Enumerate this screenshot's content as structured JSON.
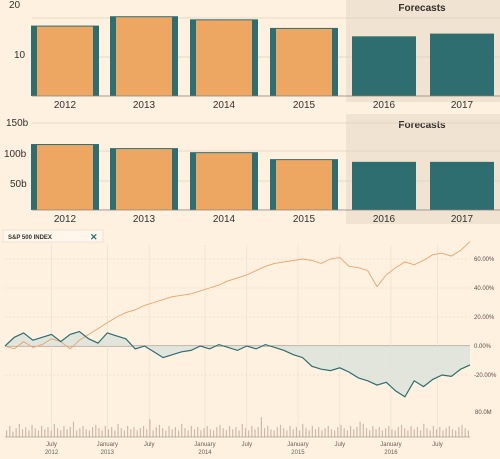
{
  "colors": {
    "background": "#fff1e0",
    "forecast_band": "#f0e3d2",
    "bar_orange": "#eda763",
    "bar_teal": "#2e6e70",
    "line_orange": "#e6a36a",
    "line_teal": "#2e6e70",
    "area_fill": "#dfe3dc",
    "volume": "#cdb9a8",
    "legend_close": "#2e6e70"
  },
  "chart_data": [
    {
      "type": "bar",
      "categories": [
        "2012",
        "2013",
        "2014",
        "2015",
        "2016",
        "2017"
      ],
      "values": [
        17.8,
        20.2,
        19.4,
        17.2,
        15.3,
        16.0
      ],
      "forecast_from_index": 4,
      "forecast_label": "Forecasts",
      "yticks": [
        10,
        20
      ],
      "ylim": [
        0,
        20.6
      ]
    },
    {
      "type": "bar",
      "categories": [
        "2012",
        "2013",
        "2014",
        "2015",
        "2016",
        "2017"
      ],
      "values": [
        112,
        105,
        98,
        86,
        83,
        83
      ],
      "forecast_from_index": 4,
      "forecast_label": "Forecasts",
      "yticks": [
        50,
        100,
        150
      ],
      "ytick_labels": [
        "50b",
        "100b",
        "150b"
      ],
      "ylim": [
        0,
        150
      ]
    },
    {
      "type": "line",
      "legend": "S&P 500 INDEX",
      "xticks": [
        {
          "month": "July",
          "year": "2012",
          "t": 0.1
        },
        {
          "month": "January",
          "year": "2013",
          "t": 0.22
        },
        {
          "month": "July",
          "year": "",
          "t": 0.31
        },
        {
          "month": "January",
          "year": "2014",
          "t": 0.43
        },
        {
          "month": "July",
          "year": "",
          "t": 0.52
        },
        {
          "month": "January",
          "year": "2015",
          "t": 0.63
        },
        {
          "month": "July",
          "year": "",
          "t": 0.72
        },
        {
          "month": "January",
          "year": "2016",
          "t": 0.83
        },
        {
          "month": "July",
          "year": "",
          "t": 0.93
        }
      ],
      "yticks": [
        {
          "label": "60.00%",
          "value": 60
        },
        {
          "label": "40.00%",
          "value": 40
        },
        {
          "label": "20.00%",
          "value": 20
        },
        {
          "label": "0.00%",
          "value": 0
        },
        {
          "label": "-20.00%",
          "value": -20
        }
      ],
      "ylim": [
        -37,
        75
      ],
      "volume_label": "80.0M",
      "series": [
        {
          "name": "S&P 500 INDEX",
          "x": [
            0,
            0.02,
            0.04,
            0.06,
            0.08,
            0.1,
            0.12,
            0.14,
            0.16,
            0.18,
            0.2,
            0.22,
            0.24,
            0.26,
            0.28,
            0.3,
            0.32,
            0.34,
            0.36,
            0.38,
            0.4,
            0.42,
            0.44,
            0.46,
            0.48,
            0.5,
            0.52,
            0.54,
            0.56,
            0.58,
            0.6,
            0.62,
            0.64,
            0.66,
            0.68,
            0.7,
            0.72,
            0.74,
            0.76,
            0.78,
            0.8,
            0.82,
            0.84,
            0.86,
            0.88,
            0.9,
            0.92,
            0.94,
            0.96,
            0.98,
            1.0
          ],
          "y": [
            0,
            -2,
            3,
            -1,
            1,
            5,
            3,
            -2,
            4,
            8,
            12,
            16,
            20,
            23,
            25,
            28,
            30,
            32,
            34,
            35,
            36,
            38,
            40,
            42,
            45,
            47,
            49,
            52,
            55,
            57,
            58,
            59,
            60,
            59,
            57,
            60,
            61,
            55,
            54,
            52,
            41,
            49,
            54,
            58,
            56,
            59,
            63,
            64,
            62,
            66,
            72
          ]
        },
        {
          "name": "",
          "x": [
            0,
            0.02,
            0.04,
            0.06,
            0.08,
            0.1,
            0.12,
            0.14,
            0.16,
            0.18,
            0.2,
            0.22,
            0.24,
            0.26,
            0.28,
            0.3,
            0.32,
            0.34,
            0.36,
            0.38,
            0.4,
            0.42,
            0.44,
            0.46,
            0.48,
            0.5,
            0.52,
            0.54,
            0.56,
            0.58,
            0.6,
            0.62,
            0.64,
            0.66,
            0.68,
            0.7,
            0.72,
            0.74,
            0.76,
            0.78,
            0.8,
            0.82,
            0.84,
            0.86,
            0.88,
            0.9,
            0.92,
            0.94,
            0.96,
            0.98,
            1.0
          ],
          "y": [
            0,
            6,
            9,
            4,
            6,
            8,
            3,
            8,
            10,
            5,
            2,
            9,
            7,
            5,
            -2,
            0,
            -4,
            -8,
            -6,
            -4,
            -3,
            0,
            -2,
            1,
            -1,
            -3,
            0,
            -2,
            1,
            -1,
            -3,
            -6,
            -8,
            -14,
            -16,
            -17,
            -15,
            -18,
            -22,
            -24,
            -27,
            -25,
            -31,
            -35,
            -24,
            -28,
            -23,
            -20,
            -21,
            -16,
            -13
          ]
        }
      ],
      "volume": [
        0.3,
        0.5,
        0.25,
        0.4,
        0.6,
        0.35,
        0.45,
        0.3,
        0.55,
        0.4,
        0.3,
        0.5,
        0.35,
        0.45,
        0.3,
        0.6,
        0.4,
        0.3,
        0.5,
        0.35,
        0.45,
        0.7,
        0.3,
        0.4,
        0.5,
        0.35,
        0.3,
        0.45,
        0.55,
        0.4,
        0.3,
        0.5,
        0.35,
        0.45,
        0.3,
        0.6,
        0.4,
        0.3,
        0.5,
        0.35,
        0.45,
        0.3,
        0.4,
        0.5,
        0.35,
        0.8,
        0.3,
        0.45,
        0.55,
        0.4,
        0.3,
        0.5,
        0.35,
        0.45,
        0.3,
        0.6,
        0.4,
        0.3,
        0.5,
        0.35,
        0.45,
        0.3,
        0.4,
        0.5,
        0.35,
        0.3,
        0.45,
        0.55,
        0.4,
        0.3,
        0.5,
        0.35,
        0.45,
        0.3,
        0.6,
        0.4,
        0.3,
        0.5,
        0.35,
        0.45,
        0.9,
        0.4,
        0.5,
        0.35,
        0.3,
        0.45,
        0.55,
        0.4,
        0.3,
        0.5,
        0.35,
        0.45,
        0.3,
        0.6,
        0.4,
        0.3,
        0.5,
        0.35,
        0.45,
        0.3,
        0.4,
        0.5,
        0.35,
        0.3,
        0.45,
        0.55,
        0.4,
        0.3,
        0.5,
        0.35,
        0.45,
        0.7,
        0.6,
        0.4,
        0.3,
        0.5,
        0.35,
        0.45,
        0.3,
        0.4,
        0.5,
        0.35,
        0.3,
        0.45,
        0.55,
        0.4,
        0.3,
        0.5,
        0.35,
        0.45,
        0.3,
        0.6,
        0.4,
        0.3,
        0.5,
        0.35,
        0.45,
        0.3,
        0.4,
        0.5,
        0.35,
        0.3,
        0.45,
        0.55,
        0.4,
        0.3
      ]
    }
  ]
}
